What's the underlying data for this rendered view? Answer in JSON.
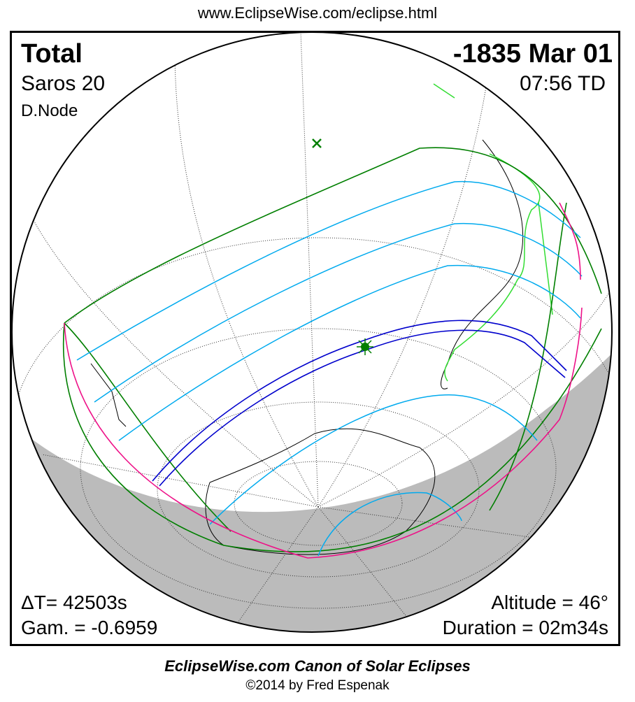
{
  "header": {
    "url": "www.EclipseWise.com/eclipse.html"
  },
  "eclipse": {
    "type": "Total",
    "date": "-1835 Mar 01",
    "saros": "Saros  20",
    "time": "07:56 TD",
    "node": "D.Node",
    "delta_t": "ΔT=  42503s",
    "gamma": "Gam. = -0.6959",
    "altitude": "Altitude = 46°",
    "duration": "Duration = 02m34s"
  },
  "footer": {
    "canon": "EclipseWise.com Canon of Solar Eclipses",
    "copyright": "©2014 by Fred Espenak"
  },
  "colors": {
    "penumbral_limits": "#007f00",
    "partial_curves": "#00aaee",
    "central_path": "#0000cc",
    "rise_set": "#ee1188",
    "night": "#bbbbbb",
    "coast_highlight": "#33dd33"
  }
}
